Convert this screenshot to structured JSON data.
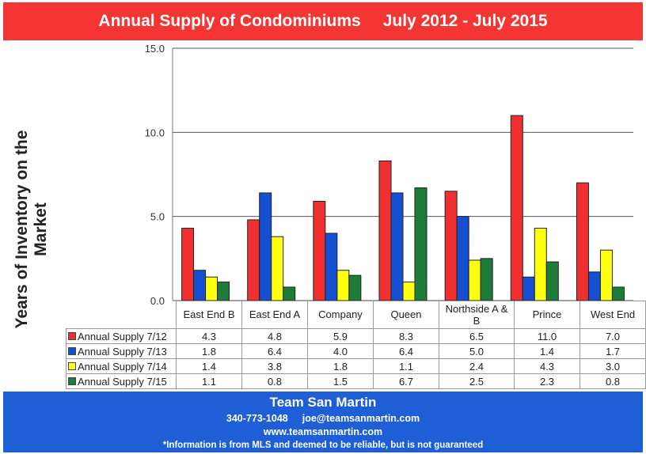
{
  "header": {
    "title": "Annual Supply of Condominiums",
    "range": "July 2012 - July 2015"
  },
  "chart_data": {
    "type": "bar",
    "title": "Annual Supply of Condominiums    July 2012 - July 2015",
    "ylabel_line1": "Years of Inventory on  the",
    "ylabel_line2": "Market",
    "xlabel": "",
    "ylim": [
      0,
      15
    ],
    "yticks": [
      "0.0",
      "5.0",
      "10.0",
      "15.0"
    ],
    "ytick_values": [
      0,
      5,
      10,
      15
    ],
    "grid": true,
    "categories": [
      "East End B",
      "East End A",
      "Company",
      "Queen",
      "Northside A & B",
      "Prince",
      "West End"
    ],
    "series": [
      {
        "name": "Annual Supply 7/12",
        "color": "#f03030",
        "values": [
          "4.3",
          "4.8",
          "5.9",
          "8.3",
          "6.5",
          "11.0",
          "7.0"
        ]
      },
      {
        "name": "Annual Supply 7/13",
        "color": "#1450d0",
        "values": [
          "1.8",
          "6.4",
          "4.0",
          "6.4",
          "5.0",
          "1.4",
          "1.7"
        ]
      },
      {
        "name": "Annual Supply 7/14",
        "color": "#ffff10",
        "values": [
          "1.4",
          "3.8",
          "1.8",
          "1.1",
          "2.4",
          "4.3",
          "3.0"
        ]
      },
      {
        "name": "Annual Supply 7/15",
        "color": "#1d7d38",
        "values": [
          "1.1",
          "0.8",
          "1.5",
          "6.7",
          "2.5",
          "2.3",
          "0.8"
        ]
      }
    ],
    "legend": "data-table"
  },
  "footer": {
    "name": "Team San Martin",
    "phone": "340-773-1048",
    "email": "joe@teamsanmartin.com",
    "website": "www.teamsanmartin.com",
    "note": "*Information is from MLS and deemed to be reliable, but is not guaranteed"
  }
}
